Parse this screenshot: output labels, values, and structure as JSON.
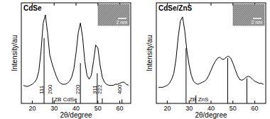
{
  "chart_data": [
    {
      "type": "line",
      "title": "CdSe",
      "x_label": "2θ/degree",
      "y_label": "Intensity/au",
      "xlim": [
        15,
        65
      ],
      "ylim": [
        0,
        100
      ],
      "xticks": [
        20,
        30,
        40,
        50,
        60
      ],
      "tick_labels": "x",
      "annotations": [
        {
          "text": "2 nm"
        }
      ],
      "series": [
        {
          "name": "CdSe",
          "type": "line",
          "color": "#000000",
          "x": [
            16,
            17,
            18,
            19,
            20,
            21,
            22,
            23,
            24,
            25,
            26,
            27,
            28,
            29,
            30,
            31,
            32,
            33,
            34,
            35,
            36,
            37,
            38,
            39,
            40,
            41,
            42,
            43,
            44,
            45,
            46,
            47,
            48,
            49,
            50,
            51,
            52,
            53,
            54,
            55,
            56,
            57,
            58,
            59,
            60,
            61,
            62,
            63,
            64
          ],
          "values": [
            18,
            17,
            17,
            18,
            19,
            21,
            24,
            32,
            52,
            80,
            88,
            70,
            48,
            40,
            33,
            27,
            22,
            20,
            19,
            19,
            20,
            22,
            26,
            34,
            50,
            70,
            80,
            66,
            42,
            28,
            24,
            28,
            42,
            58,
            55,
            38,
            26,
            21,
            19,
            18,
            18,
            18,
            19,
            19,
            20,
            21,
            21,
            19,
            18
          ]
        },
        {
          "name": "ZB CdSe",
          "type": "stem",
          "color": "#000000",
          "x": [
            25.4,
            29.3,
            42.0,
            49.7,
            52.0,
            61.0
          ],
          "values": [
            65,
            6,
            40,
            30,
            5,
            4
          ],
          "labels": [
            "111",
            "200",
            "220",
            "311",
            "222",
            "400"
          ]
        }
      ]
    },
    {
      "type": "line",
      "title": "CdSe/ZnS",
      "x_label": "2θ/degree",
      "y_label": "Intensity/au",
      "xlim": [
        15,
        65
      ],
      "ylim": [
        0,
        100
      ],
      "xticks": [
        20,
        30,
        40,
        50,
        60
      ],
      "tick_labels": "x",
      "annotations": [
        {
          "text": "2 nm"
        }
      ],
      "series": [
        {
          "name": "CdSe/ZnS",
          "type": "line",
          "color": "#000000",
          "x": [
            16,
            17,
            18,
            19,
            20,
            21,
            22,
            23,
            24,
            25,
            26,
            27,
            28,
            29,
            30,
            31,
            32,
            33,
            34,
            35,
            36,
            37,
            38,
            39,
            40,
            41,
            42,
            43,
            44,
            45,
            46,
            47,
            48,
            49,
            50,
            51,
            52,
            53,
            54,
            55,
            56,
            57,
            58,
            59,
            60,
            61,
            62,
            63,
            64
          ],
          "values": [
            16,
            16,
            16,
            17,
            18,
            20,
            24,
            30,
            44,
            66,
            82,
            86,
            72,
            52,
            38,
            28,
            22,
            20,
            19,
            20,
            21,
            22,
            24,
            28,
            33,
            38,
            42,
            45,
            46,
            44,
            44,
            46,
            47,
            45,
            40,
            34,
            28,
            24,
            23,
            24,
            26,
            27,
            26,
            24,
            22,
            21,
            20,
            20,
            19
          ]
        },
        {
          "name": "ZB ZnS",
          "type": "stem",
          "color": "#000000",
          "x": [
            28.6,
            33.1,
            47.6,
            56.4
          ],
          "values": [
            55,
            8,
            45,
            25
          ]
        }
      ]
    }
  ]
}
